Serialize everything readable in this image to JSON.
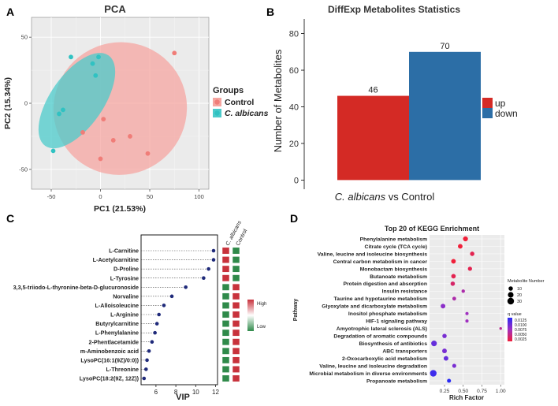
{
  "chart_data": [
    {
      "panel": "A",
      "type": "scatter",
      "title": "PCA",
      "xlabel": "PC1 (21.53%)",
      "ylabel": "PC2 (15.34%)",
      "xlim": [
        -70,
        110
      ],
      "ylim": [
        -65,
        65
      ],
      "xticks": [
        -50,
        0,
        50,
        100
      ],
      "yticks": [
        -50,
        0,
        50
      ],
      "legend_title": "Groups",
      "series": [
        {
          "name": "Control",
          "color": "#f07d78",
          "points": [
            [
              75,
              38
            ],
            [
              0,
              -42
            ],
            [
              3,
              -12
            ],
            [
              -18,
              -22
            ],
            [
              13,
              -28
            ],
            [
              30,
              -25
            ],
            [
              48,
              -38
            ]
          ]
        },
        {
          "name": "C. albicans",
          "color": "#30c2c2",
          "points": [
            [
              -30,
              35
            ],
            [
              -2,
              35
            ],
            [
              -8,
              30
            ],
            [
              -5,
              21
            ],
            [
              -38,
              -5
            ],
            [
              -42,
              -8
            ],
            [
              -48,
              -36
            ]
          ]
        }
      ],
      "ellipse_colors": [
        "#f5a6a1",
        "#4ccbcb"
      ]
    },
    {
      "panel": "B",
      "type": "bar",
      "title": "DiffExp Metabolites Statistics",
      "ylabel": "Number of Metabolites",
      "xlabel_italic": "C. albicans",
      "xlabel_rest": " vs Control",
      "ylim": [
        -5,
        88
      ],
      "yticks": [
        0,
        20,
        40,
        60,
        80
      ],
      "series": [
        {
          "name": "up",
          "value": 46,
          "display": "46",
          "color": "#d42a25"
        },
        {
          "name": "down",
          "value": 70,
          "display": "70",
          "color": "#2c6ea6"
        }
      ]
    },
    {
      "panel": "C",
      "type": "scatter",
      "xlabel": "VIP",
      "xlim": [
        4.5,
        12.2
      ],
      "xticks": [
        6,
        8,
        10,
        12
      ],
      "heatmap_columns": [
        "C. albicans",
        "Control"
      ],
      "colorbar_labels": [
        "High",
        "Low"
      ],
      "high_color": "#c8323c",
      "low_color": "#2f8a4a",
      "metabolites": [
        {
          "name": "L-Carnitine",
          "vip": 11.8,
          "albicans": "high"
        },
        {
          "name": "L-Acetylcarnitine",
          "vip": 11.8,
          "albicans": "high"
        },
        {
          "name": "D-Proline",
          "vip": 11.3,
          "albicans": "high"
        },
        {
          "name": "L-Tyrosine",
          "vip": 10.8,
          "albicans": "high"
        },
        {
          "name": "3,3,5-triiodo-L-thyronine-beta-D-glucuronoside",
          "vip": 9.0,
          "albicans": "low"
        },
        {
          "name": "Norvaline",
          "vip": 7.6,
          "albicans": "low"
        },
        {
          "name": "L-Alloisoleucine",
          "vip": 6.8,
          "albicans": "low"
        },
        {
          "name": "L-Arginine",
          "vip": 6.3,
          "albicans": "low"
        },
        {
          "name": "Butyrylcarnitine",
          "vip": 6.1,
          "albicans": "low"
        },
        {
          "name": "L-Phenylalanine",
          "vip": 5.9,
          "albicans": "low"
        },
        {
          "name": "2-Phentlacetamide",
          "vip": 5.6,
          "albicans": "low"
        },
        {
          "name": "m-Aminobenzoic acid",
          "vip": 5.3,
          "albicans": "low"
        },
        {
          "name": "LysoPC(16:1(9Z)/0:0))",
          "vip": 5.1,
          "albicans": "low"
        },
        {
          "name": "L-Threonine",
          "vip": 5.0,
          "albicans": "low"
        },
        {
          "name": "LysoPC(18:2(9Z, 12Z))",
          "vip": 4.8,
          "albicans": "low"
        }
      ]
    },
    {
      "panel": "D",
      "type": "scatter",
      "title": "Top 20 of KEGG Enrichment",
      "xlabel": "Rich Factor",
      "ylabel": "Pathway",
      "xlim": [
        0.05,
        1.05
      ],
      "xticks": [
        0.25,
        0.5,
        0.75,
        1.0
      ],
      "xtick_labels": [
        "0.25",
        "0.50",
        "0.75",
        "1.00"
      ],
      "size_legend_title": "Metabolite Number",
      "size_legend_values": [
        "10",
        "20",
        "30"
      ],
      "color_legend_title": "q value",
      "color_legend_values": [
        "0.0125",
        "0.0100",
        "0.0075",
        "0.0050",
        "0.0025"
      ],
      "pathways": [
        {
          "name": "Phenylalanine metabolism",
          "rich": 0.53,
          "q": 0.001,
          "n": 14
        },
        {
          "name": "Citrate cycle (TCA cycle)",
          "rich": 0.46,
          "q": 0.001,
          "n": 12
        },
        {
          "name": "Valine, leucine and isoleucine biosynthesis",
          "rich": 0.62,
          "q": 0.002,
          "n": 10
        },
        {
          "name": "Central carbon metabolism in cancer",
          "rich": 0.37,
          "q": 0.001,
          "n": 12
        },
        {
          "name": "Monobactam biosynthesis",
          "rich": 0.59,
          "q": 0.002,
          "n": 9
        },
        {
          "name": "Butanoate metabolism",
          "rich": 0.37,
          "q": 0.002,
          "n": 11
        },
        {
          "name": "Protein digestion and absorption",
          "rich": 0.36,
          "q": 0.003,
          "n": 10
        },
        {
          "name": "Insulin resistance",
          "rich": 0.5,
          "q": 0.006,
          "n": 5
        },
        {
          "name": "Taurine and hypotaurine metabolism",
          "rich": 0.38,
          "q": 0.006,
          "n": 7
        },
        {
          "name": "Glyoxylate and dicarboxylate metabolism",
          "rich": 0.23,
          "q": 0.008,
          "n": 12
        },
        {
          "name": "Inositol phosphate metabolism",
          "rich": 0.55,
          "q": 0.007,
          "n": 4
        },
        {
          "name": "HIF-1 signaling pathway",
          "rich": 0.55,
          "q": 0.007,
          "n": 4
        },
        {
          "name": "Amyotrophic lateral sclerosis (ALS)",
          "rich": 1.0,
          "q": 0.005,
          "n": 2
        },
        {
          "name": "Degradation of aromatic compounds",
          "rich": 0.25,
          "q": 0.009,
          "n": 10
        },
        {
          "name": "Biosynthesis of antibiotics",
          "rich": 0.11,
          "q": 0.01,
          "n": 20
        },
        {
          "name": "ABC transporters",
          "rich": 0.25,
          "q": 0.009,
          "n": 12
        },
        {
          "name": "2-Oxocarboxylic acid metabolism",
          "rich": 0.27,
          "q": 0.01,
          "n": 12
        },
        {
          "name": "Valine, leucine and isoleucine degradation",
          "rich": 0.38,
          "q": 0.009,
          "n": 8
        },
        {
          "name": "Microbial metabolism in diverse environments",
          "rich": 0.1,
          "q": 0.012,
          "n": 30
        },
        {
          "name": "Propanoate metabolism",
          "rich": 0.31,
          "q": 0.013,
          "n": 8
        }
      ]
    }
  ],
  "panel_letters": [
    "A",
    "B",
    "C",
    "D"
  ]
}
